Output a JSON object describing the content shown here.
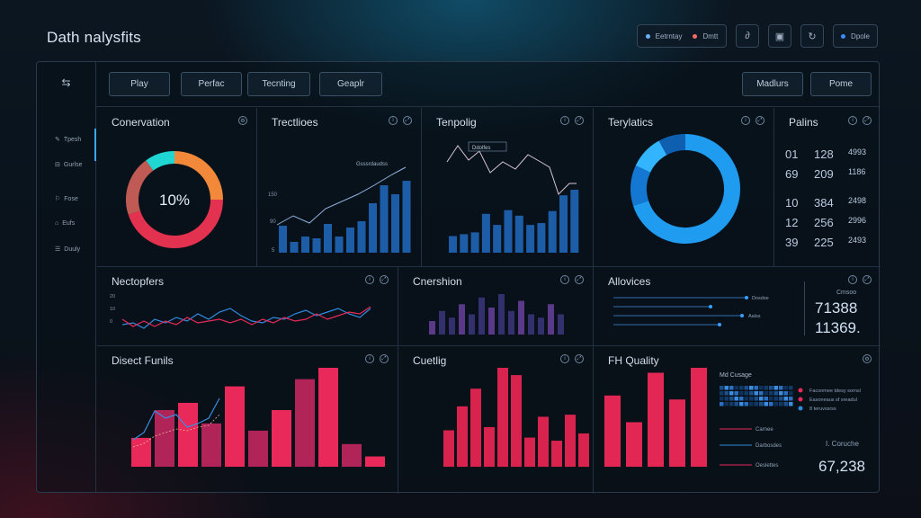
{
  "app": {
    "title": "Dath nalysfits"
  },
  "top_actions": [
    {
      "label": "Eetrntay"
    },
    {
      "label": "Dmtt"
    },
    {
      "label": "Dpole"
    }
  ],
  "toolbar": {
    "left": [
      "Play",
      "Perfac",
      "Tecnting",
      "Geaplr"
    ],
    "right": [
      "Madlurs",
      "Pome"
    ]
  },
  "sidebar": {
    "items": [
      "Tpesh",
      "Gurlse",
      "Fose",
      "Eufs",
      "Duuly"
    ]
  },
  "panels": {
    "conversation": {
      "title": "Conervation",
      "center_label": "10%"
    },
    "treatlices": {
      "title": "Trectlioes",
      "annotation": "Gsssrdaudss"
    },
    "tenpolig": {
      "title": "Tenpolig",
      "annotation": "Ddolfes"
    },
    "terylatics": {
      "title": "Terylatics"
    },
    "palins": {
      "title": "Palins",
      "rows": [
        [
          "01",
          "128",
          "4993"
        ],
        [
          "69",
          "209",
          "1186"
        ],
        [
          "10",
          "384",
          "2498"
        ],
        [
          "12",
          "256",
          "2996"
        ],
        [
          "39",
          "225",
          "2493"
        ]
      ]
    },
    "necttopfers": {
      "title": "Nectopfers"
    },
    "cnershion": {
      "title": "Cnershion"
    },
    "allovices": {
      "title": "Allovices",
      "value_label": "Cmsoo",
      "value1": "71388",
      "value2": "11369.",
      "bar_labels": [
        "Dosdse",
        "Aalss"
      ]
    },
    "disect_funils": {
      "title": "Disect Funils"
    },
    "cuetlig": {
      "title": "Cuetlig"
    },
    "fh_quality": {
      "title": "FH Quality",
      "legend_title": "Md Cusage",
      "legend": [
        "Faconmee tdesy sornsl",
        "Easoneaus sf sreadul",
        "8 teruvssrss"
      ],
      "lines": [
        "Carnee",
        "Darbosdes",
        "Oeslettes"
      ],
      "stat_label": "I. Coruche",
      "stat_value": "67,238"
    }
  },
  "colors": {
    "accent_blue": "#1f9bf0",
    "accent_red": "#e8295a",
    "accent_orange": "#f2893a",
    "accent_teal": "#1fd6d2",
    "bar_blue": "#1d5da8"
  },
  "chart_data": [
    {
      "type": "pie",
      "title": "Conervation",
      "center_label": "10%",
      "values": [
        25,
        45,
        20,
        10
      ],
      "colors": [
        "#f2893a",
        "#e3324f",
        "#c05a54",
        "#1fd6d2"
      ]
    },
    {
      "type": "bar",
      "title": "Trectlioes",
      "values": [
        30,
        12,
        18,
        16,
        32,
        18,
        28,
        35,
        55,
        75,
        65,
        80
      ]
    },
    {
      "type": "bar",
      "title": "Tenpolig",
      "values": [
        18,
        20,
        22,
        42,
        30,
        46,
        40,
        30,
        32,
        45,
        62,
        68
      ]
    },
    {
      "type": "pie",
      "title": "Terylatics",
      "values": [
        70,
        12,
        10,
        8
      ],
      "colors": [
        "#1f9bf0",
        "#1478d2",
        "#32b4ff",
        "#0f5fb0"
      ]
    },
    {
      "type": "bar",
      "title": "Cnershion",
      "values": [
        20,
        35,
        25,
        45,
        30,
        55,
        40,
        60,
        35,
        50,
        30,
        25,
        45,
        30
      ]
    },
    {
      "type": "bar",
      "title": "Disect Funils",
      "values": [
        28,
        55,
        62,
        42,
        78,
        35,
        55,
        85,
        96,
        22,
        10
      ]
    },
    {
      "type": "bar",
      "title": "Cuetlig",
      "values": [
        35,
        58,
        75,
        38,
        95,
        88,
        28,
        48,
        25,
        50,
        32
      ]
    },
    {
      "type": "bar",
      "title": "FH Quality",
      "values": [
        72,
        45,
        95,
        68,
        100
      ]
    }
  ]
}
